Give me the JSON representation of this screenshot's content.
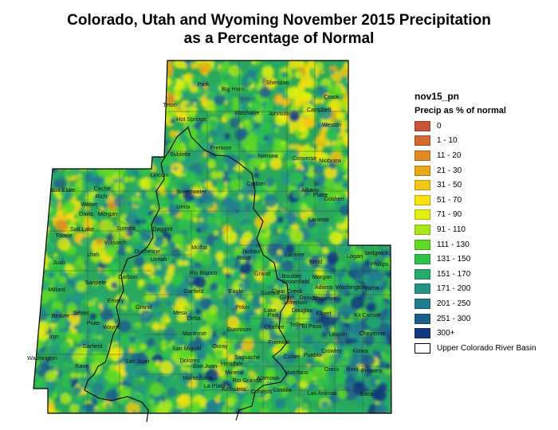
{
  "title": {
    "line1": "Colorado, Utah and Wyoming November 2015 Precipitation",
    "line2": "as a Percentage of Normal"
  },
  "legend": {
    "layer_name": "nov15_pn",
    "subtitle": "Precip as % of normal",
    "classes": [
      {
        "label": "0",
        "color": "#c8553a"
      },
      {
        "label": "1 - 10",
        "color": "#d3692e"
      },
      {
        "label": "11 - 20",
        "color": "#df8a22"
      },
      {
        "label": "21 - 30",
        "color": "#e9a81a"
      },
      {
        "label": "31 - 50",
        "color": "#f2c613"
      },
      {
        "label": "51 - 70",
        "color": "#f7e20f"
      },
      {
        "label": "71 - 90",
        "color": "#e3ee10"
      },
      {
        "label": "91 - 110",
        "color": "#a8e81a"
      },
      {
        "label": "111 - 130",
        "color": "#5fd826"
      },
      {
        "label": "131 - 150",
        "color": "#2ec24a"
      },
      {
        "label": "151 - 170",
        "color": "#25ac6c"
      },
      {
        "label": "171 - 200",
        "color": "#229585"
      },
      {
        "label": "201 - 250",
        "color": "#227c8f"
      },
      {
        "label": "251 - 300",
        "color": "#1f5f8c"
      },
      {
        "label": "300+",
        "color": "#123a80"
      }
    ],
    "basin_label": "Upper Colorado River Basin"
  },
  "counties": {
    "wyoming": [
      "Park",
      "Big Horn",
      "Sheridan",
      "Crook",
      "Teton",
      "Washakie",
      "Johnson",
      "Campbell",
      "Hot Springs",
      "Weston",
      "Fremont",
      "Sublette",
      "Natrona",
      "Converse",
      "Niobrara",
      "Lincoln",
      "Sweetwater",
      "Carbon",
      "Albany",
      "Platte",
      "Goshen",
      "Uinta",
      "Laramie"
    ],
    "utah": [
      "Box Elder",
      "Cache",
      "Rich",
      "Weber",
      "Davis",
      "Morgan",
      "Salt Lake",
      "Summit",
      "Daggett",
      "Tooele",
      "Wasatch",
      "Duchesne",
      "Utah",
      "Uintah",
      "Juab",
      "Carbon",
      "Sanpete",
      "Millard",
      "Emery",
      "Grand",
      "Sevier",
      "Beaver",
      "Piute",
      "Wayne",
      "Iron",
      "Garfield",
      "San Juan",
      "Washington",
      "Kane"
    ],
    "colorado": [
      "Moffat",
      "Jackson",
      "Larimer",
      "Weld",
      "Logan",
      "Sedgwick",
      "Phillips",
      "Routt",
      "Boulder",
      "Morgan",
      "Rio Blanco",
      "Grand",
      "Broomfield",
      "Adams",
      "Washington",
      "Yuma",
      "Garfield",
      "Eagle",
      "Summit",
      "Clear Creek",
      "Gilpin",
      "Denver",
      "Jefferson",
      "Arapahoe",
      "Mesa",
      "Pitkin",
      "Lake",
      "Park",
      "Douglas",
      "Elbert",
      "Kit Carson",
      "Delta",
      "Gunnison",
      "Chaffee",
      "Teller",
      "El Paso",
      "Lincoln",
      "Cheyenne",
      "Montrose",
      "Ouray",
      "Fremont",
      "San Miguel",
      "Saguache",
      "Custer",
      "Pueblo",
      "Crowley",
      "Kiowa",
      "Dolores",
      "San Juan",
      "Hinsdale",
      "Mineral",
      "Rio Grande",
      "Alamosa",
      "Huerfano",
      "Otero",
      "Bent",
      "Prowers",
      "Montezuma",
      "La Plata",
      "Archuleta",
      "Conejos",
      "Costilla",
      "Las Animas",
      "Baca"
    ]
  }
}
